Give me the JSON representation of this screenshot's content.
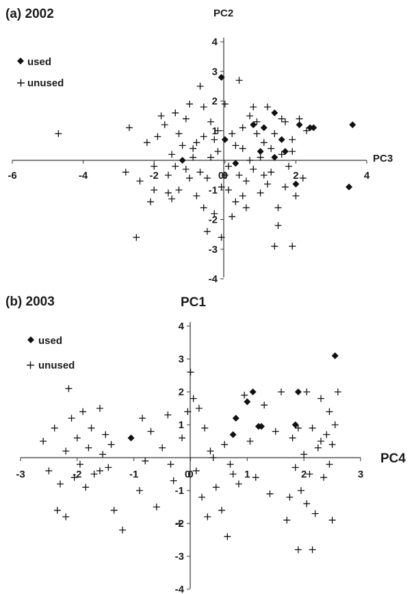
{
  "chart_data": [
    {
      "type": "scatter",
      "panel_title": "(a) 2002",
      "xlabel": "PC3",
      "ylabel": "PC2",
      "xlim": [
        -6,
        4
      ],
      "ylim": [
        -4,
        4
      ],
      "x_ticks": [
        -6,
        -4,
        -2,
        0,
        2,
        4
      ],
      "y_ticks": [
        -4,
        -3,
        -2,
        -1,
        0,
        1,
        2,
        3,
        4
      ],
      "legend_placement": "top-left",
      "grid": false,
      "series": [
        {
          "name": "used",
          "marker": "diamond",
          "points": [
            [
              -0.1,
              2.8
            ],
            [
              1.4,
              1.6
            ],
            [
              0.8,
              1.2
            ],
            [
              1.1,
              1.1
            ],
            [
              2.1,
              1.2
            ],
            [
              2.4,
              1.1
            ],
            [
              2.5,
              1.1
            ],
            [
              3.6,
              1.2
            ],
            [
              0.0,
              0.7
            ],
            [
              1.6,
              0.7
            ],
            [
              1.0,
              0.3
            ],
            [
              1.7,
              0.3
            ],
            [
              2.0,
              -0.8
            ],
            [
              3.5,
              -0.9
            ],
            [
              1.4,
              0.1
            ],
            [
              0.3,
              -0.1
            ],
            [
              -1.2,
              0.0
            ]
          ]
        },
        {
          "name": "unused",
          "marker": "plus",
          "points": [
            [
              -4.7,
              0.9
            ],
            [
              -2.7,
              1.1
            ],
            [
              -2.8,
              -0.4
            ],
            [
              -2.2,
              0.6
            ],
            [
              -2.1,
              -1.4
            ],
            [
              -1.9,
              0.8
            ],
            [
              -1.7,
              1.2
            ],
            [
              -1.6,
              -0.5
            ],
            [
              -1.5,
              0.2
            ],
            [
              -1.4,
              1.6
            ],
            [
              -1.3,
              -1.0
            ],
            [
              -1.2,
              0.5
            ],
            [
              -1.1,
              -0.3
            ],
            [
              -1.0,
              1.9
            ],
            [
              -0.9,
              0.1
            ],
            [
              -0.8,
              -1.2
            ],
            [
              -0.7,
              2.5
            ],
            [
              -0.6,
              0.8
            ],
            [
              -0.5,
              -0.6
            ],
            [
              -0.4,
              1.3
            ],
            [
              -0.3,
              -1.8
            ],
            [
              -0.2,
              0.3
            ],
            [
              -0.1,
              -0.9
            ],
            [
              0.0,
              1.9
            ],
            [
              0.1,
              -0.2
            ],
            [
              0.2,
              0.9
            ],
            [
              0.3,
              -1.4
            ],
            [
              0.4,
              2.7
            ],
            [
              0.5,
              0.4
            ],
            [
              0.6,
              -0.7
            ],
            [
              0.7,
              1.5
            ],
            [
              0.8,
              -0.3
            ],
            [
              0.9,
              0.9
            ],
            [
              1.0,
              -1.1
            ],
            [
              1.1,
              0.6
            ],
            [
              1.2,
              1.8
            ],
            [
              1.3,
              -0.4
            ],
            [
              1.4,
              0.9
            ],
            [
              1.5,
              -1.6
            ],
            [
              1.6,
              0.2
            ],
            [
              1.7,
              1.3
            ],
            [
              1.8,
              -0.2
            ],
            [
              1.9,
              0.7
            ],
            [
              2.0,
              -1.2
            ],
            [
              2.1,
              1.4
            ],
            [
              2.2,
              -0.6
            ],
            [
              -2.4,
              -0.7
            ],
            [
              -2.0,
              -0.2
            ],
            [
              -1.8,
              1.5
            ],
            [
              -1.6,
              -1.1
            ],
            [
              -1.3,
              0.9
            ],
            [
              -1.0,
              -0.6
            ],
            [
              -0.8,
              0.6
            ],
            [
              -0.6,
              -1.6
            ],
            [
              -0.4,
              0.1
            ],
            [
              -0.2,
              1.0
            ],
            [
              0.1,
              -1.0
            ],
            [
              0.3,
              0.5
            ],
            [
              0.5,
              -1.2
            ],
            [
              0.7,
              0.0
            ],
            [
              0.9,
              1.3
            ],
            [
              1.1,
              -0.5
            ],
            [
              1.3,
              0.4
            ],
            [
              1.5,
              -2.2
            ],
            [
              1.7,
              -0.9
            ],
            [
              1.9,
              0.3
            ],
            [
              0.2,
              -1.9
            ],
            [
              -0.1,
              -2.6
            ],
            [
              -2.5,
              -2.6
            ],
            [
              1.9,
              -2.9
            ],
            [
              1.4,
              -2.9
            ],
            [
              -0.5,
              -2.4
            ],
            [
              -1.5,
              -1.3
            ],
            [
              -2.0,
              -1.0
            ],
            [
              0.6,
              -1.6
            ],
            [
              0.8,
              1.8
            ],
            [
              -1.1,
              1.4
            ],
            [
              -0.7,
              -0.4
            ],
            [
              -0.3,
              0.7
            ],
            [
              0.0,
              -0.5
            ],
            [
              0.4,
              -0.5
            ],
            [
              1.0,
              0.1
            ],
            [
              1.2,
              -0.8
            ],
            [
              -0.9,
              0.4
            ],
            [
              -1.4,
              -0.2
            ],
            [
              -0.6,
              1.8
            ],
            [
              0.5,
              1.1
            ],
            [
              1.6,
              1.4
            ],
            [
              2.3,
              1.0
            ]
          ]
        }
      ]
    },
    {
      "type": "scatter",
      "panel_title": "(b) 2003",
      "xlabel": "PC4",
      "ylabel": "PC1",
      "xlim": [
        -3,
        3
      ],
      "ylim": [
        -4,
        4
      ],
      "x_ticks": [
        -3,
        -2,
        -1,
        0,
        1,
        2,
        3
      ],
      "y_ticks": [
        -4,
        -3,
        -2,
        -1,
        0,
        1,
        2,
        3,
        4
      ],
      "legend_placement": "top-left",
      "grid": false,
      "series": [
        {
          "name": "used",
          "marker": "diamond",
          "points": [
            [
              -1.05,
              0.6
            ],
            [
              0.8,
              1.2
            ],
            [
              0.75,
              0.7
            ],
            [
              1.0,
              1.7
            ],
            [
              1.1,
              2.0
            ],
            [
              1.2,
              0.95
            ],
            [
              1.25,
              0.95
            ],
            [
              1.85,
              1.0
            ],
            [
              1.9,
              2.0
            ],
            [
              2.55,
              3.1
            ]
          ]
        },
        {
          "name": "unused",
          "marker": "plus",
          "points": [
            [
              -2.6,
              0.5
            ],
            [
              -2.5,
              -0.4
            ],
            [
              -2.4,
              0.9
            ],
            [
              -2.3,
              -0.8
            ],
            [
              -2.2,
              0.2
            ],
            [
              -2.1,
              1.2
            ],
            [
              -2.05,
              -0.6
            ],
            [
              -2.0,
              0.6
            ],
            [
              -1.95,
              -0.2
            ],
            [
              -1.9,
              1.4
            ],
            [
              -1.85,
              -0.9
            ],
            [
              -1.8,
              0.3
            ],
            [
              -1.75,
              0.9
            ],
            [
              -1.7,
              -0.5
            ],
            [
              -1.6,
              1.5
            ],
            [
              -1.55,
              0.1
            ],
            [
              -1.5,
              0.7
            ],
            [
              -1.45,
              -0.3
            ],
            [
              -1.4,
              0.4
            ],
            [
              -2.15,
              2.1
            ],
            [
              -2.35,
              -1.6
            ],
            [
              -2.2,
              -1.8
            ],
            [
              -1.35,
              -1.6
            ],
            [
              -1.2,
              -2.2
            ],
            [
              -0.85,
              1.2
            ],
            [
              -0.8,
              -0.1
            ],
            [
              -0.7,
              0.8
            ],
            [
              -0.6,
              -1.5
            ],
            [
              -0.5,
              0.3
            ],
            [
              -0.4,
              1.3
            ],
            [
              -0.3,
              -0.7
            ],
            [
              -0.2,
              -2.0
            ],
            [
              -0.15,
              0.6
            ],
            [
              -0.05,
              1.4
            ],
            [
              0.0,
              2.6
            ],
            [
              0.05,
              1.8
            ],
            [
              0.1,
              -0.4
            ],
            [
              0.15,
              1.5
            ],
            [
              0.2,
              -1.2
            ],
            [
              0.25,
              0.9
            ],
            [
              0.3,
              -1.8
            ],
            [
              0.35,
              0.2
            ],
            [
              0.45,
              -0.9
            ],
            [
              0.55,
              -1.6
            ],
            [
              0.6,
              0.4
            ],
            [
              0.65,
              -2.4
            ],
            [
              0.7,
              -0.2
            ],
            [
              0.85,
              -0.8
            ],
            [
              0.95,
              1.9
            ],
            [
              1.05,
              0.5
            ],
            [
              1.15,
              -0.6
            ],
            [
              1.3,
              1.6
            ],
            [
              1.4,
              -1.1
            ],
            [
              1.5,
              0.8
            ],
            [
              1.6,
              2.0
            ],
            [
              1.7,
              -1.9
            ],
            [
              1.75,
              -1.2
            ],
            [
              1.8,
              0.6
            ],
            [
              1.85,
              -0.3
            ],
            [
              1.9,
              -2.8
            ],
            [
              1.95,
              -1.0
            ],
            [
              2.0,
              0.1
            ],
            [
              2.05,
              -1.4
            ],
            [
              2.1,
              -0.5
            ],
            [
              2.15,
              0.9
            ],
            [
              2.2,
              -1.7
            ],
            [
              2.25,
              0.3
            ],
            [
              2.3,
              1.8
            ],
            [
              2.35,
              -0.6
            ],
            [
              2.4,
              0.7
            ],
            [
              2.45,
              -0.2
            ],
            [
              2.5,
              -1.9
            ],
            [
              2.55,
              1.0
            ],
            [
              2.6,
              2.0
            ],
            [
              2.05,
              2.0
            ],
            [
              2.15,
              -2.8
            ],
            [
              1.9,
              0.9
            ],
            [
              2.3,
              0.5
            ],
            [
              2.5,
              0.4
            ],
            [
              2.45,
              1.4
            ],
            [
              -1.6,
              -0.4
            ],
            [
              -0.9,
              -1.0
            ],
            [
              -0.35,
              -0.2
            ],
            [
              0.4,
              0.0
            ],
            [
              0.75,
              -0.5
            ]
          ]
        }
      ]
    }
  ]
}
